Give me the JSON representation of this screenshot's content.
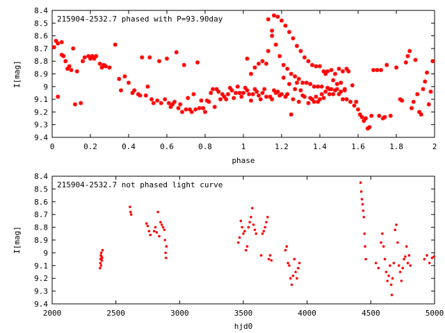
{
  "chart_data": [
    {
      "type": "scatter",
      "title": "215904-2532.7 phased with P=93.90day",
      "xlabel": "phase",
      "ylabel": "I[mag]",
      "xlim": [
        0,
        2
      ],
      "ylim": [
        8.4,
        9.4
      ],
      "y_inverted": true,
      "xticks": [
        "0",
        "0.2",
        "0.4",
        "0.6",
        "0.8",
        "1",
        "1.2",
        "1.4",
        "1.6",
        "1.8",
        "2"
      ],
      "yticks": [
        "8.4",
        "8.5",
        "8.6",
        "8.7",
        "8.8",
        "8.9",
        "9",
        "9.1",
        "9.2",
        "9.3",
        "9.4"
      ],
      "color": "#ff0000",
      "marker": "star",
      "points": [
        [
          0.01,
          8.69
        ],
        [
          0.02,
          8.64
        ],
        [
          0.03,
          9.08
        ],
        [
          0.03,
          8.66
        ],
        [
          0.05,
          8.65
        ],
        [
          0.05,
          8.75
        ],
        [
          0.06,
          8.76
        ],
        [
          0.07,
          8.8
        ],
        [
          0.08,
          8.86
        ],
        [
          0.09,
          8.84
        ],
        [
          0.1,
          8.87
        ],
        [
          0.11,
          8.7
        ],
        [
          0.12,
          9.14
        ],
        [
          0.13,
          8.88
        ],
        [
          0.15,
          9.13
        ],
        [
          0.16,
          8.8
        ],
        [
          0.17,
          8.77
        ],
        [
          0.19,
          8.76
        ],
        [
          0.2,
          8.78
        ],
        [
          0.21,
          8.76
        ],
        [
          0.22,
          8.78
        ],
        [
          0.23,
          8.76
        ],
        [
          0.25,
          8.82
        ],
        [
          0.26,
          8.85
        ],
        [
          0.27,
          8.83
        ],
        [
          0.28,
          8.84
        ],
        [
          0.3,
          8.85
        ],
        [
          0.33,
          8.67
        ],
        [
          0.35,
          8.94
        ],
        [
          0.36,
          9.03
        ],
        [
          0.38,
          8.92
        ],
        [
          0.4,
          8.97
        ],
        [
          0.42,
          9.05
        ],
        [
          0.43,
          9.03
        ],
        [
          0.45,
          9.06
        ],
        [
          0.46,
          9.07
        ],
        [
          0.47,
          8.77
        ],
        [
          0.49,
          9.07
        ],
        [
          0.5,
          9.0
        ],
        [
          0.51,
          8.77
        ],
        [
          0.52,
          9.1
        ],
        [
          0.53,
          9.13
        ],
        [
          0.55,
          9.11
        ],
        [
          0.56,
          8.8
        ],
        [
          0.57,
          9.13
        ],
        [
          0.59,
          9.1
        ],
        [
          0.6,
          8.78
        ],
        [
          0.61,
          9.13
        ],
        [
          0.62,
          9.16
        ],
        [
          0.63,
          9.14
        ],
        [
          0.64,
          9.12
        ],
        [
          0.65,
          8.73
        ],
        [
          0.66,
          9.17
        ],
        [
          0.67,
          9.14
        ],
        [
          0.68,
          9.2
        ],
        [
          0.69,
          8.83
        ],
        [
          0.7,
          9.18
        ],
        [
          0.71,
          9.09
        ],
        [
          0.72,
          9.18
        ],
        [
          0.73,
          9.2
        ],
        [
          0.74,
          9.06
        ],
        [
          0.75,
          9.18
        ],
        [
          0.76,
          8.81
        ],
        [
          0.77,
          9.17
        ],
        [
          0.78,
          9.11
        ],
        [
          0.79,
          9.17
        ],
        [
          0.8,
          9.2
        ],
        [
          0.81,
          9.11
        ],
        [
          0.82,
          9.12
        ],
        [
          0.83,
          9.05
        ],
        [
          0.84,
          9.02
        ],
        [
          0.85,
          9.16
        ],
        [
          0.86,
          9.02
        ],
        [
          0.87,
          9.04
        ],
        [
          0.88,
          9.1
        ],
        [
          0.89,
          9.06
        ],
        [
          0.9,
          9.08
        ],
        [
          0.91,
          9.1
        ],
        [
          0.92,
          9.06
        ],
        [
          0.93,
          9.01
        ],
        [
          0.94,
          9.03
        ],
        [
          0.95,
          9.09
        ],
        [
          0.96,
          9.05
        ],
        [
          0.97,
          9.0
        ],
        [
          0.98,
          9.05
        ],
        [
          0.99,
          9.08
        ],
        [
          1.0,
          9.05
        ],
        [
          1.01,
          9.01
        ],
        [
          1.02,
          9.03
        ],
        [
          1.03,
          9.06
        ],
        [
          1.04,
          9.11
        ],
        [
          1.05,
          9.06
        ],
        [
          1.06,
          9.02
        ],
        [
          1.07,
          9.04
        ],
        [
          1.08,
          9.07
        ],
        [
          1.09,
          9.1
        ],
        [
          1.1,
          9.05
        ],
        [
          1.11,
          9.02
        ],
        [
          1.12,
          9.08
        ],
        [
          1.13,
          8.72
        ],
        [
          1.14,
          9.08
        ],
        [
          1.15,
          9.1
        ],
        [
          1.16,
          9.03
        ],
        [
          1.17,
          9.05
        ],
        [
          1.18,
          9.04
        ],
        [
          1.19,
          9.07
        ],
        [
          1.2,
          9.06
        ],
        [
          1.21,
          8.93
        ],
        [
          1.22,
          9.08
        ],
        [
          1.23,
          9.06
        ],
        [
          1.24,
          8.98
        ],
        [
          1.25,
          9.22
        ],
        [
          1.26,
          9.1
        ],
        [
          1.27,
          9.02
        ],
        [
          1.28,
          8.97
        ],
        [
          1.29,
          9.12
        ],
        [
          1.3,
          9.03
        ],
        [
          1.31,
          9.07
        ],
        [
          1.32,
          9.08
        ],
        [
          1.34,
          9.13
        ],
        [
          1.35,
          9.09
        ],
        [
          1.36,
          9.1
        ],
        [
          1.37,
          9.12
        ],
        [
          1.38,
          9.08
        ],
        [
          1.39,
          9.12
        ],
        [
          1.4,
          9.1
        ],
        [
          1.41,
          9.06
        ],
        [
          1.42,
          9.09
        ],
        [
          1.43,
          8.9
        ],
        [
          1.44,
          9.01
        ],
        [
          1.45,
          9.06
        ],
        [
          1.46,
          9.02
        ],
        [
          1.47,
          8.95
        ],
        [
          1.48,
          9.03
        ],
        [
          1.49,
          8.98
        ],
        [
          1.5,
          9.06
        ],
        [
          1.51,
          8.97
        ],
        [
          1.52,
          9.1
        ],
        [
          1.53,
          9.03
        ],
        [
          1.54,
          9.1
        ],
        [
          1.55,
          8.88
        ],
        [
          1.56,
          9.12
        ],
        [
          1.57,
          8.99
        ],
        [
          1.58,
          9.15
        ],
        [
          1.59,
          9.12
        ],
        [
          1.6,
          9.18
        ],
        [
          1.61,
          9.22
        ],
        [
          1.62,
          9.24
        ],
        [
          1.63,
          9.27
        ],
        [
          1.64,
          9.25
        ],
        [
          1.65,
          9.33
        ],
        [
          1.66,
          9.32
        ],
        [
          1.67,
          9.23
        ],
        [
          1.68,
          8.87
        ],
        [
          1.7,
          8.87
        ],
        [
          1.71,
          9.23
        ],
        [
          1.72,
          8.87
        ],
        [
          1.73,
          9.25
        ],
        [
          1.74,
          9.24
        ],
        [
          1.75,
          8.83
        ],
        [
          1.77,
          9.23
        ],
        [
          1.8,
          8.85
        ],
        [
          1.82,
          9.1
        ],
        [
          1.83,
          9.11
        ],
        [
          1.85,
          8.81
        ],
        [
          1.86,
          8.76
        ],
        [
          1.87,
          8.72
        ],
        [
          1.88,
          9.17
        ],
        [
          1.89,
          9.12
        ],
        [
          1.9,
          8.79
        ],
        [
          1.91,
          9.06
        ],
        [
          1.92,
          9.2
        ],
        [
          1.93,
          9.22
        ],
        [
          1.94,
          9.02
        ],
        [
          1.95,
          8.96
        ],
        [
          1.96,
          8.89
        ],
        [
          1.97,
          9.14
        ],
        [
          1.98,
          9.04
        ],
        [
          1.99,
          8.8
        ],
        [
          1.02,
          8.78
        ],
        [
          1.04,
          8.9
        ],
        [
          1.06,
          8.85
        ],
        [
          1.08,
          8.82
        ],
        [
          1.1,
          8.8
        ],
        [
          1.12,
          8.82
        ],
        [
          1.15,
          8.6
        ],
        [
          1.16,
          8.44
        ],
        [
          1.18,
          8.45
        ],
        [
          1.2,
          8.48
        ],
        [
          1.22,
          8.52
        ],
        [
          1.24,
          8.57
        ],
        [
          1.26,
          8.62
        ],
        [
          1.28,
          8.68
        ],
        [
          1.3,
          8.72
        ],
        [
          1.32,
          8.77
        ],
        [
          1.34,
          8.8
        ],
        [
          1.36,
          8.83
        ],
        [
          1.38,
          8.84
        ],
        [
          1.4,
          8.84
        ],
        [
          1.42,
          8.88
        ],
        [
          1.44,
          8.88
        ],
        [
          1.46,
          8.87
        ],
        [
          1.48,
          8.9
        ],
        [
          1.5,
          8.86
        ],
        [
          1.52,
          8.88
        ],
        [
          1.54,
          8.86
        ],
        [
          1.13,
          8.47
        ],
        [
          1.15,
          8.56
        ],
        [
          1.17,
          8.67
        ],
        [
          1.19,
          8.76
        ],
        [
          1.21,
          8.83
        ],
        [
          1.23,
          8.86
        ],
        [
          1.25,
          8.9
        ],
        [
          1.27,
          8.92
        ],
        [
          1.29,
          8.94
        ],
        [
          1.31,
          8.97
        ],
        [
          1.33,
          8.97
        ],
        [
          1.35,
          8.98
        ],
        [
          1.37,
          9.0
        ],
        [
          1.39,
          9.0
        ],
        [
          1.41,
          9.0
        ],
        [
          1.43,
          9.04
        ],
        [
          1.45,
          9.02
        ],
        [
          1.47,
          9.06
        ],
        [
          1.49,
          9.02
        ],
        [
          1.51,
          9.04
        ],
        [
          1.53,
          9.02
        ]
      ]
    },
    {
      "type": "scatter",
      "title": "215904-2532.7 not phased light curve",
      "xlabel": "hjd0",
      "ylabel": "I[mag]",
      "xlim": [
        2000,
        5000
      ],
      "ylim": [
        8.4,
        9.4
      ],
      "y_inverted": true,
      "xticks": [
        "2000",
        "2500",
        "3000",
        "3500",
        "4000",
        "4500",
        "5000"
      ],
      "yticks": [
        "8.4",
        "8.5",
        "8.6",
        "8.7",
        "8.8",
        "8.9",
        "9",
        "9.1",
        "9.2",
        "9.3",
        "9.4"
      ],
      "color": "#ff0000",
      "marker": "dot",
      "points": [
        [
          2375,
          9.12
        ],
        [
          2378,
          9.08
        ],
        [
          2380,
          9.05
        ],
        [
          2382,
          9.02
        ],
        [
          2384,
          9.1
        ],
        [
          2386,
          9.0
        ],
        [
          2388,
          9.03
        ],
        [
          2390,
          9.06
        ],
        [
          2392,
          9.04
        ],
        [
          2395,
          8.98
        ],
        [
          2610,
          8.64
        ],
        [
          2615,
          8.68
        ],
        [
          2620,
          8.7
        ],
        [
          2740,
          8.77
        ],
        [
          2750,
          8.79
        ],
        [
          2760,
          8.83
        ],
        [
          2770,
          8.86
        ],
        [
          2800,
          8.83
        ],
        [
          2810,
          8.8
        ],
        [
          2820,
          8.84
        ],
        [
          2830,
          8.68
        ],
        [
          2840,
          8.87
        ],
        [
          2850,
          8.76
        ],
        [
          2860,
          8.78
        ],
        [
          2870,
          8.8
        ],
        [
          2880,
          8.82
        ],
        [
          2885,
          8.9
        ],
        [
          2890,
          9.0
        ],
        [
          2893,
          9.04
        ],
        [
          2896,
          8.95
        ],
        [
          3460,
          8.92
        ],
        [
          3470,
          8.88
        ],
        [
          3480,
          8.75
        ],
        [
          3490,
          8.8
        ],
        [
          3500,
          8.85
        ],
        [
          3510,
          8.83
        ],
        [
          3520,
          8.98
        ],
        [
          3530,
          8.95
        ],
        [
          3540,
          8.8
        ],
        [
          3550,
          8.76
        ],
        [
          3560,
          8.72
        ],
        [
          3570,
          8.65
        ],
        [
          3580,
          8.78
        ],
        [
          3590,
          8.82
        ],
        [
          3600,
          8.85
        ],
        [
          3640,
          9.02
        ],
        [
          3650,
          8.85
        ],
        [
          3660,
          8.83
        ],
        [
          3670,
          8.8
        ],
        [
          3680,
          8.76
        ],
        [
          3690,
          8.72
        ],
        [
          3700,
          9.05
        ],
        [
          3710,
          9.02
        ],
        [
          3720,
          9.06
        ],
        [
          3830,
          8.98
        ],
        [
          3840,
          8.95
        ],
        [
          3850,
          9.08
        ],
        [
          3860,
          9.1
        ],
        [
          3870,
          9.2
        ],
        [
          3880,
          9.25
        ],
        [
          3890,
          9.18
        ],
        [
          3900,
          9.05
        ],
        [
          3910,
          9.15
        ],
        [
          3920,
          9.2
        ],
        [
          3930,
          9.12
        ],
        [
          3940,
          9.08
        ],
        [
          4420,
          8.45
        ],
        [
          4425,
          8.52
        ],
        [
          4430,
          8.58
        ],
        [
          4435,
          8.62
        ],
        [
          4440,
          8.67
        ],
        [
          4445,
          8.72
        ],
        [
          4450,
          8.85
        ],
        [
          4455,
          8.95
        ],
        [
          4460,
          9.05
        ],
        [
          4540,
          9.08
        ],
        [
          4560,
          9.12
        ],
        [
          4580,
          8.92
        ],
        [
          4590,
          8.85
        ],
        [
          4600,
          8.95
        ],
        [
          4610,
          9.05
        ],
        [
          4620,
          9.15
        ],
        [
          4630,
          9.22
        ],
        [
          4640,
          9.18
        ],
        [
          4650,
          9.1
        ],
        [
          4660,
          9.25
        ],
        [
          4665,
          9.33
        ],
        [
          4670,
          9.2
        ],
        [
          4680,
          9.08
        ],
        [
          4690,
          8.82
        ],
        [
          4700,
          8.78
        ],
        [
          4710,
          8.92
        ],
        [
          4720,
          9.1
        ],
        [
          4730,
          9.15
        ],
        [
          4740,
          9.22
        ],
        [
          4750,
          9.12
        ],
        [
          4760,
          9.05
        ],
        [
          4770,
          9.03
        ],
        [
          4780,
          8.95
        ],
        [
          4790,
          9.08
        ],
        [
          4800,
          9.02
        ],
        [
          4810,
          9.1
        ],
        [
          4920,
          9.05
        ],
        [
          4940,
          9.02
        ],
        [
          4960,
          9.08
        ],
        [
          4980,
          9.04
        ],
        [
          4995,
          9.03
        ]
      ]
    }
  ]
}
